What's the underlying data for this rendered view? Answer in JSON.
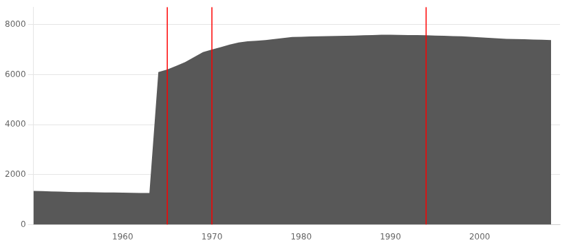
{
  "chart_data": {
    "type": "area",
    "x": [
      1950,
      1951,
      1952,
      1953,
      1954,
      1955,
      1956,
      1957,
      1958,
      1959,
      1960,
      1961,
      1962,
      1963,
      1964,
      1965,
      1966,
      1967,
      1968,
      1969,
      1970,
      1971,
      1972,
      1973,
      1974,
      1975,
      1976,
      1977,
      1978,
      1979,
      1980,
      1981,
      1982,
      1983,
      1984,
      1985,
      1986,
      1987,
      1988,
      1989,
      1990,
      1991,
      1992,
      1993,
      1994,
      1995,
      1996,
      1997,
      1998,
      1999,
      2000,
      2001,
      2002,
      2003,
      2004,
      2005,
      2006,
      2007,
      2008
    ],
    "values": [
      1350,
      1340,
      1330,
      1320,
      1310,
      1305,
      1300,
      1295,
      1290,
      1285,
      1280,
      1275,
      1270,
      1265,
      6100,
      6200,
      6350,
      6500,
      6700,
      6900,
      7000,
      7100,
      7200,
      7280,
      7330,
      7350,
      7380,
      7420,
      7460,
      7500,
      7510,
      7520,
      7530,
      7540,
      7545,
      7550,
      7560,
      7570,
      7580,
      7590,
      7590,
      7585,
      7580,
      7575,
      7570,
      7560,
      7550,
      7540,
      7530,
      7510,
      7490,
      7470,
      7450,
      7430,
      7420,
      7410,
      7400,
      7390,
      7380
    ],
    "color": "#585858",
    "vlines": {
      "values": [
        1965,
        1970,
        1994
      ],
      "color": "red"
    },
    "xlim": [
      1950,
      2009
    ],
    "xticks": [
      1960,
      1970,
      1980,
      1990,
      2000
    ],
    "ylim": [
      0,
      8700
    ],
    "yticks": [
      0,
      2000,
      4000,
      6000,
      8000
    ],
    "grid": true
  }
}
